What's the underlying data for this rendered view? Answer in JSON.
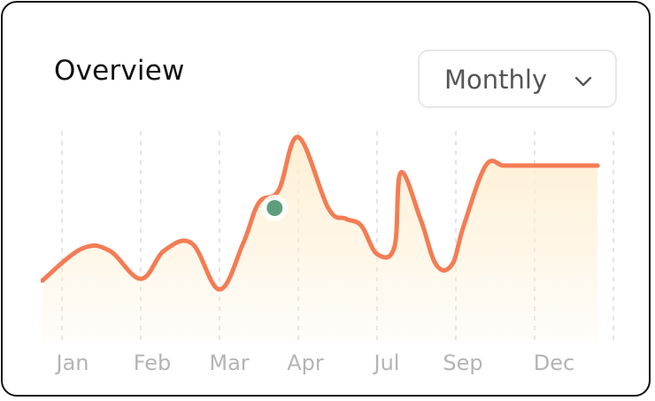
{
  "header": {
    "title": "Overview"
  },
  "period_select": {
    "value": "Monthly",
    "icon": "chevron-down-icon"
  },
  "colors": {
    "line": "#F47C54",
    "area_top": "#FDEFD3",
    "marker": "#5E9E7E",
    "grid": "#DDDDDD",
    "tick": "#B4B4B4"
  },
  "chart_data": {
    "type": "area",
    "title": "Overview",
    "xlabel": "",
    "ylabel": "",
    "x_tick_labels": [
      "Jan",
      "Feb",
      "Mar",
      "Apr",
      "Jul",
      "Sep",
      "Dec"
    ],
    "grid": "vertical-dashed",
    "ylim": [
      0,
      100
    ],
    "highlight": {
      "x": 2.7,
      "y": 60
    },
    "series": [
      {
        "x": [
          -0.25,
          0.25,
          0.6,
          1.0,
          1.3,
          1.65,
          2.0,
          2.3,
          2.5,
          2.75,
          3.0,
          3.38,
          3.6,
          3.8,
          4.0,
          4.22,
          4.3,
          4.55,
          4.75,
          4.95,
          5.1,
          5.38,
          5.6,
          5.8,
          6.2,
          6.8
        ],
        "y": [
          19,
          37,
          36,
          20,
          36,
          40,
          14,
          40,
          63,
          70,
          100,
          60,
          54,
          50,
          34,
          38,
          80,
          54,
          28,
          28,
          50,
          84,
          84,
          84,
          84,
          84
        ]
      }
    ]
  }
}
